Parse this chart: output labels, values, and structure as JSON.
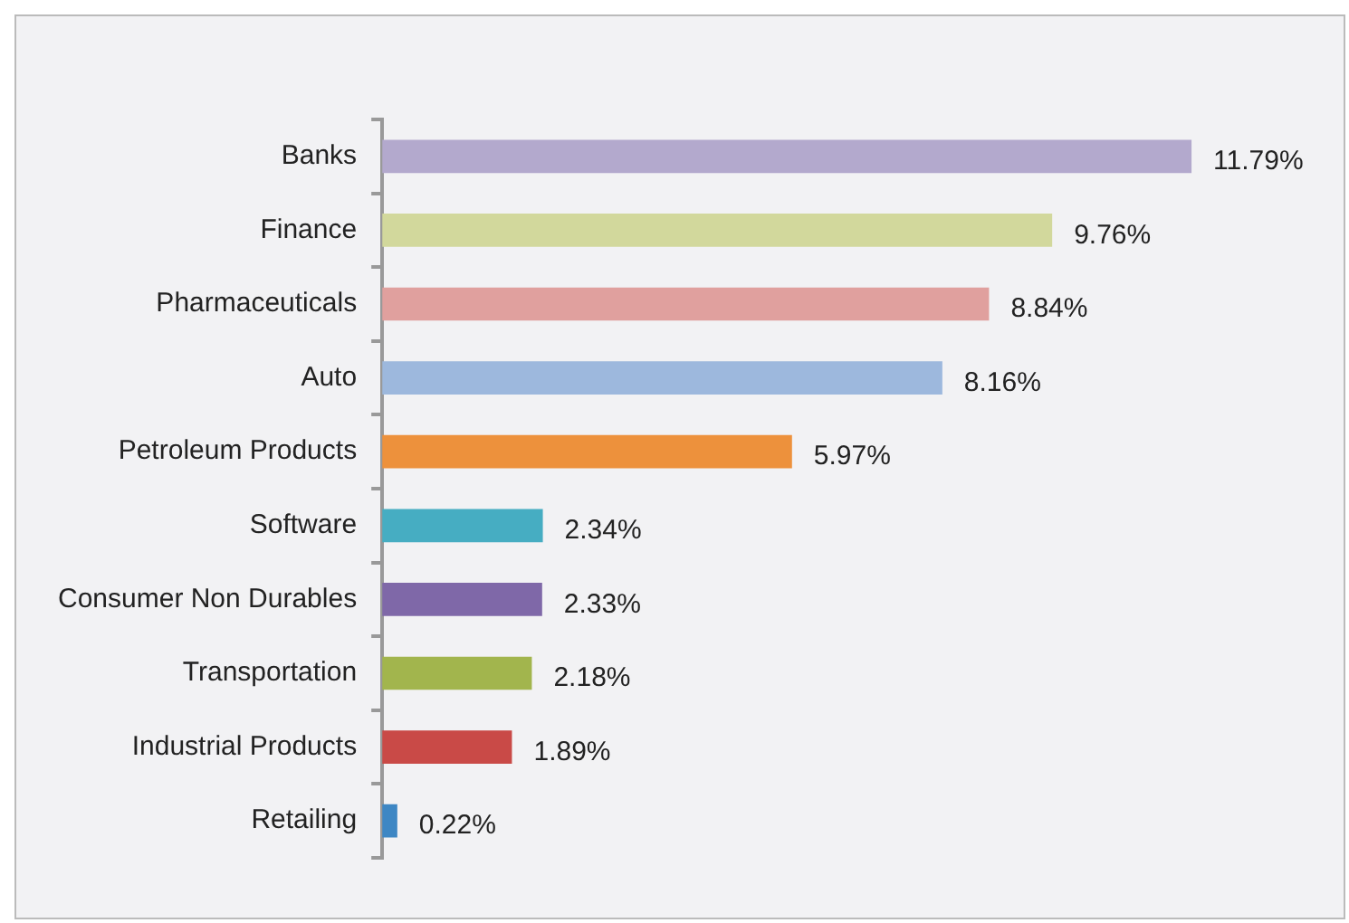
{
  "chart_data": {
    "type": "bar",
    "orientation": "horizontal",
    "categories": [
      "Banks",
      "Finance",
      "Pharmaceuticals",
      "Auto",
      "Petroleum Products",
      "Software",
      "Consumer Non Durables",
      "Transportation",
      "Industrial Products",
      "Retailing"
    ],
    "values": [
      11.79,
      9.76,
      8.84,
      8.16,
      5.97,
      2.34,
      2.33,
      2.18,
      1.89,
      0.22
    ],
    "value_labels": [
      "11.79%",
      "9.76%",
      "8.84%",
      "8.16%",
      "5.97%",
      "2.34%",
      "2.33%",
      "2.18%",
      "1.89%",
      "0.22%"
    ],
    "colors": [
      "#b3a9cd",
      "#d2d89c",
      "#e0a09e",
      "#9db8dd",
      "#ed913c",
      "#46adc2",
      "#7f68a8",
      "#a2b54d",
      "#c94a47",
      "#3e87c4"
    ],
    "tick_labels": "y",
    "legend": false
  }
}
